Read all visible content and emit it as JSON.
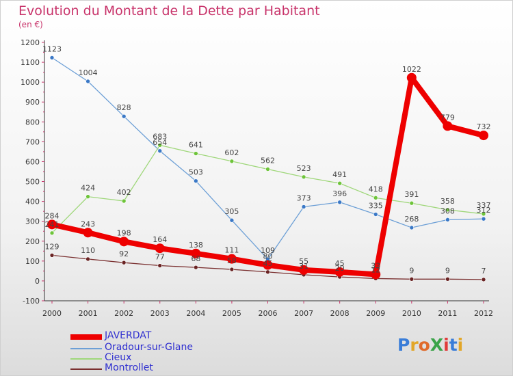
{
  "header": {
    "title": "Evolution du Montant de la Dette par Habitant",
    "subtitle": "(en €)"
  },
  "logo": {
    "text": "ProXiti",
    "colors": [
      "#3a7dd8",
      "#e2a628",
      "#e06a2a",
      "#3aa348",
      "#e03a3a",
      "#3a7dd8",
      "#e2a628"
    ]
  },
  "chart_data": {
    "type": "line",
    "title": "Evolution du Montant de la Dette par Habitant",
    "subtitle": "(en €)",
    "xlabel": "",
    "ylabel": "",
    "x": [
      "2000",
      "2001",
      "2002",
      "2003",
      "2004",
      "2005",
      "2006",
      "2007",
      "2008",
      "2009",
      "2010",
      "2011",
      "2012"
    ],
    "ylim": [
      -100,
      1200
    ],
    "yticks": [
      -100,
      0,
      100,
      200,
      300,
      400,
      500,
      600,
      700,
      800,
      900,
      1000,
      1100,
      1200
    ],
    "grid": "off",
    "legend_position": "bottom-left",
    "series": [
      {
        "name": "JAVERDAT",
        "color": "#ee0000",
        "emphasis": true,
        "values": [
          284,
          243,
          198,
          164,
          138,
          111,
          80,
          55,
          45,
          33,
          1022,
          779,
          732
        ]
      },
      {
        "name": "Oradour-sur-Glane",
        "color": "#6c9fd6",
        "marker": "#3a78c6",
        "values": [
          1123,
          1004,
          828,
          654,
          503,
          305,
          109,
          373,
          396,
          335,
          268,
          308,
          312
        ]
      },
      {
        "name": "Cieux",
        "color": "#9fd77a",
        "marker": "#6ec43a",
        "values": [
          241,
          424,
          402,
          683,
          641,
          602,
          562,
          523,
          491,
          418,
          391,
          358,
          337
        ]
      },
      {
        "name": "Montrollet",
        "color": "#7a3030",
        "marker": "#6a2424",
        "values": [
          129,
          110,
          92,
          77,
          68,
          58,
          45,
          31,
          20,
          12,
          9,
          9,
          7
        ]
      }
    ],
    "value_labels": {
      "JAVERDAT": [
        "284",
        "243",
        "198",
        "164",
        "138",
        "111",
        "80",
        "55",
        "45",
        "33",
        "1022",
        "779",
        "732"
      ],
      "Oradour-sur-Glane": [
        "1123",
        "1004",
        "828",
        "654",
        "503",
        "305",
        "109",
        "373",
        "396",
        "335",
        "268",
        "308",
        "312"
      ],
      "Cieux": [
        "241",
        "424",
        "402",
        "683",
        "641",
        "602",
        "562",
        "523",
        "491",
        "418",
        "391",
        "358",
        "337"
      ],
      "Montrollet": [
        "129",
        "110",
        "92",
        "77",
        "68",
        "58",
        "45",
        "31",
        "20",
        "12",
        "9",
        "9",
        "7"
      ]
    }
  }
}
